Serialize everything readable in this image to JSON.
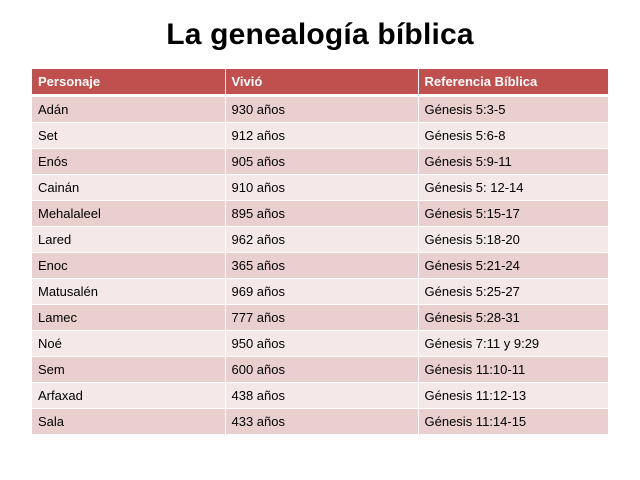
{
  "title": "La genealogía bíblica",
  "table": {
    "headers": [
      "Personaje",
      "Vivió",
      "Referencia Bíblica"
    ],
    "rows": [
      [
        "Adán",
        "930 años",
        "Génesis  5:3-5"
      ],
      [
        "Set",
        "912 años",
        "Génesis  5:6-8"
      ],
      [
        "Enós",
        "905 años",
        "Génesis  5:9-11"
      ],
      [
        "Cainán",
        "910 años",
        "Génesis  5: 12-14"
      ],
      [
        "Mehalaleel",
        "895 años",
        "Génesis  5:15-17"
      ],
      [
        "Lared",
        "962 años",
        "Génesis  5:18-20"
      ],
      [
        "Enoc",
        "365 años",
        "Génesis  5:21-24"
      ],
      [
        "Matusalén",
        "969 años",
        "Génesis  5:25-27"
      ],
      [
        "Lamec",
        "777 años",
        "Génesis  5:28-31"
      ],
      [
        "Noé",
        "950 años",
        "Génesis  7:11 y 9:29"
      ],
      [
        "Sem",
        "600 años",
        "Génesis  11:10-11"
      ],
      [
        "Arfaxad",
        "438 años",
        "Génesis  11:12-13"
      ],
      [
        "Sala",
        "433 años",
        "Génesis  11:14-15"
      ]
    ]
  },
  "colors": {
    "header_background": "#c0504d",
    "row_odd_background": "#e9cfce",
    "row_even_background": "#f4e8e8"
  }
}
